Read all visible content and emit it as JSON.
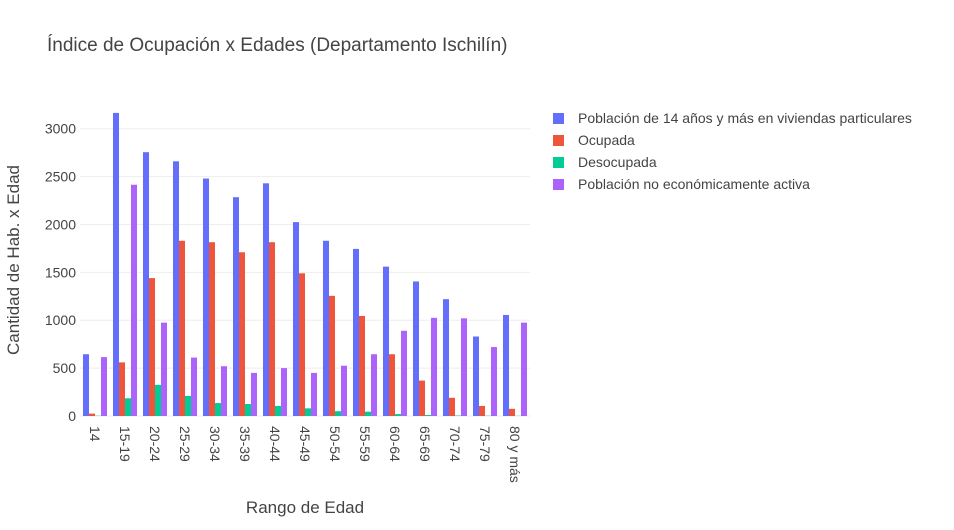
{
  "chart_data": {
    "type": "bar",
    "title": "Índice de Ocupación x Edades (Departamento Ischilín)",
    "xlabel": "Rango de Edad",
    "ylabel": "Cantidad de Hab. x Edad",
    "ylim": [
      0,
      3300
    ],
    "yticks": [
      0,
      500,
      1000,
      1500,
      2000,
      2500,
      3000
    ],
    "grid": true,
    "legend_position": "top-right",
    "categories": [
      "14",
      "15-19",
      "20-24",
      "25-29",
      "30-34",
      "35-39",
      "40-44",
      "45-49",
      "50-54",
      "55-59",
      "60-64",
      "65-69",
      "70-74",
      "75-79",
      "80 y más"
    ],
    "series": [
      {
        "name": "Población de 14 años y más en viviendas particulares",
        "color": "#636efa",
        "values": [
          645,
          3165,
          2755,
          2660,
          2480,
          2285,
          2430,
          2025,
          1830,
          1745,
          1560,
          1405,
          1220,
          830,
          1055
        ]
      },
      {
        "name": "Ocupada",
        "color": "#ef553b",
        "values": [
          25,
          560,
          1440,
          1830,
          1815,
          1710,
          1815,
          1490,
          1255,
          1045,
          645,
          370,
          190,
          105,
          75
        ]
      },
      {
        "name": "Desocupada",
        "color": "#00cc96",
        "values": [
          3,
          185,
          325,
          210,
          135,
          125,
          105,
          80,
          50,
          45,
          20,
          10,
          5,
          3,
          2
        ]
      },
      {
        "name": "Población no económicamente activa",
        "color": "#ab63fa",
        "values": [
          615,
          2415,
          975,
          610,
          520,
          450,
          500,
          450,
          525,
          645,
          890,
          1025,
          1020,
          720,
          975
        ]
      }
    ]
  }
}
